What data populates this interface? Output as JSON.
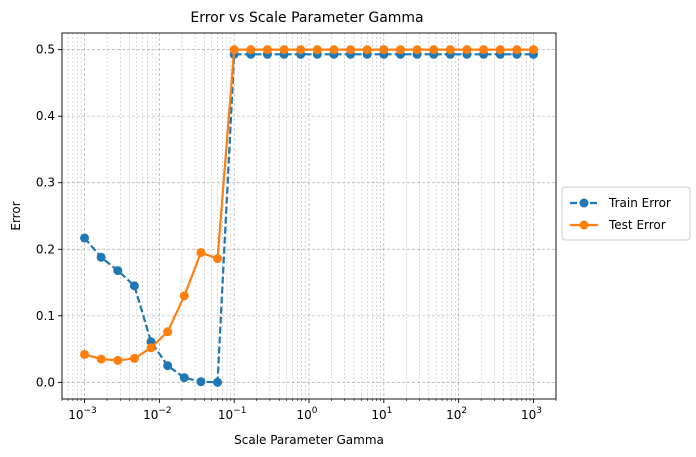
{
  "chart_data": {
    "type": "line",
    "title": "Error vs Scale Parameter Gamma",
    "xlabel": "Scale Parameter Gamma",
    "ylabel": "Error",
    "xscale": "log",
    "xlim": [
      0.0005,
      2000
    ],
    "ylim": [
      -0.025,
      0.525
    ],
    "grid": true,
    "legend_position": "outside-right",
    "x_ticks": [
      {
        "value": 0.001,
        "base": "10",
        "exp": "−3"
      },
      {
        "value": 0.01,
        "base": "10",
        "exp": "−2"
      },
      {
        "value": 0.1,
        "base": "10",
        "exp": "−1"
      },
      {
        "value": 1,
        "base": "10",
        "exp": "0"
      },
      {
        "value": 10,
        "base": "10",
        "exp": "1"
      },
      {
        "value": 100,
        "base": "10",
        "exp": "2"
      },
      {
        "value": 1000,
        "base": "10",
        "exp": "3"
      }
    ],
    "y_ticks": [
      {
        "value": 0.0,
        "label": "0.0"
      },
      {
        "value": 0.1,
        "label": "0.1"
      },
      {
        "value": 0.2,
        "label": "0.2"
      },
      {
        "value": 0.3,
        "label": "0.3"
      },
      {
        "value": 0.4,
        "label": "0.4"
      },
      {
        "value": 0.5,
        "label": "0.5"
      }
    ],
    "x": [
      0.001,
      0.001668,
      0.002783,
      0.004642,
      0.007743,
      0.012915,
      0.021544,
      0.035938,
      0.059948,
      0.1,
      0.16681,
      0.27826,
      0.46416,
      0.77426,
      1.2915,
      2.1544,
      3.5938,
      5.9948,
      10,
      16.681,
      27.826,
      46.416,
      77.426,
      129.15,
      215.44,
      359.38,
      599.48,
      1000
    ],
    "series": [
      {
        "name": "Train Error",
        "color": "#1f77b4",
        "linestyle": "dashed",
        "values": [
          0.217,
          0.188,
          0.168,
          0.145,
          0.061,
          0.025,
          0.007,
          0.001,
          0.0,
          0.493,
          0.493,
          0.493,
          0.493,
          0.493,
          0.493,
          0.493,
          0.493,
          0.493,
          0.493,
          0.493,
          0.493,
          0.493,
          0.493,
          0.493,
          0.493,
          0.493,
          0.493,
          0.493
        ]
      },
      {
        "name": "Test Error",
        "color": "#ff7f0e",
        "linestyle": "solid",
        "values": [
          0.042,
          0.035,
          0.033,
          0.036,
          0.052,
          0.076,
          0.13,
          0.195,
          0.186,
          0.5,
          0.5,
          0.5,
          0.5,
          0.5,
          0.5,
          0.5,
          0.5,
          0.5,
          0.5,
          0.5,
          0.5,
          0.5,
          0.5,
          0.5,
          0.5,
          0.5,
          0.5,
          0.5
        ]
      }
    ]
  }
}
